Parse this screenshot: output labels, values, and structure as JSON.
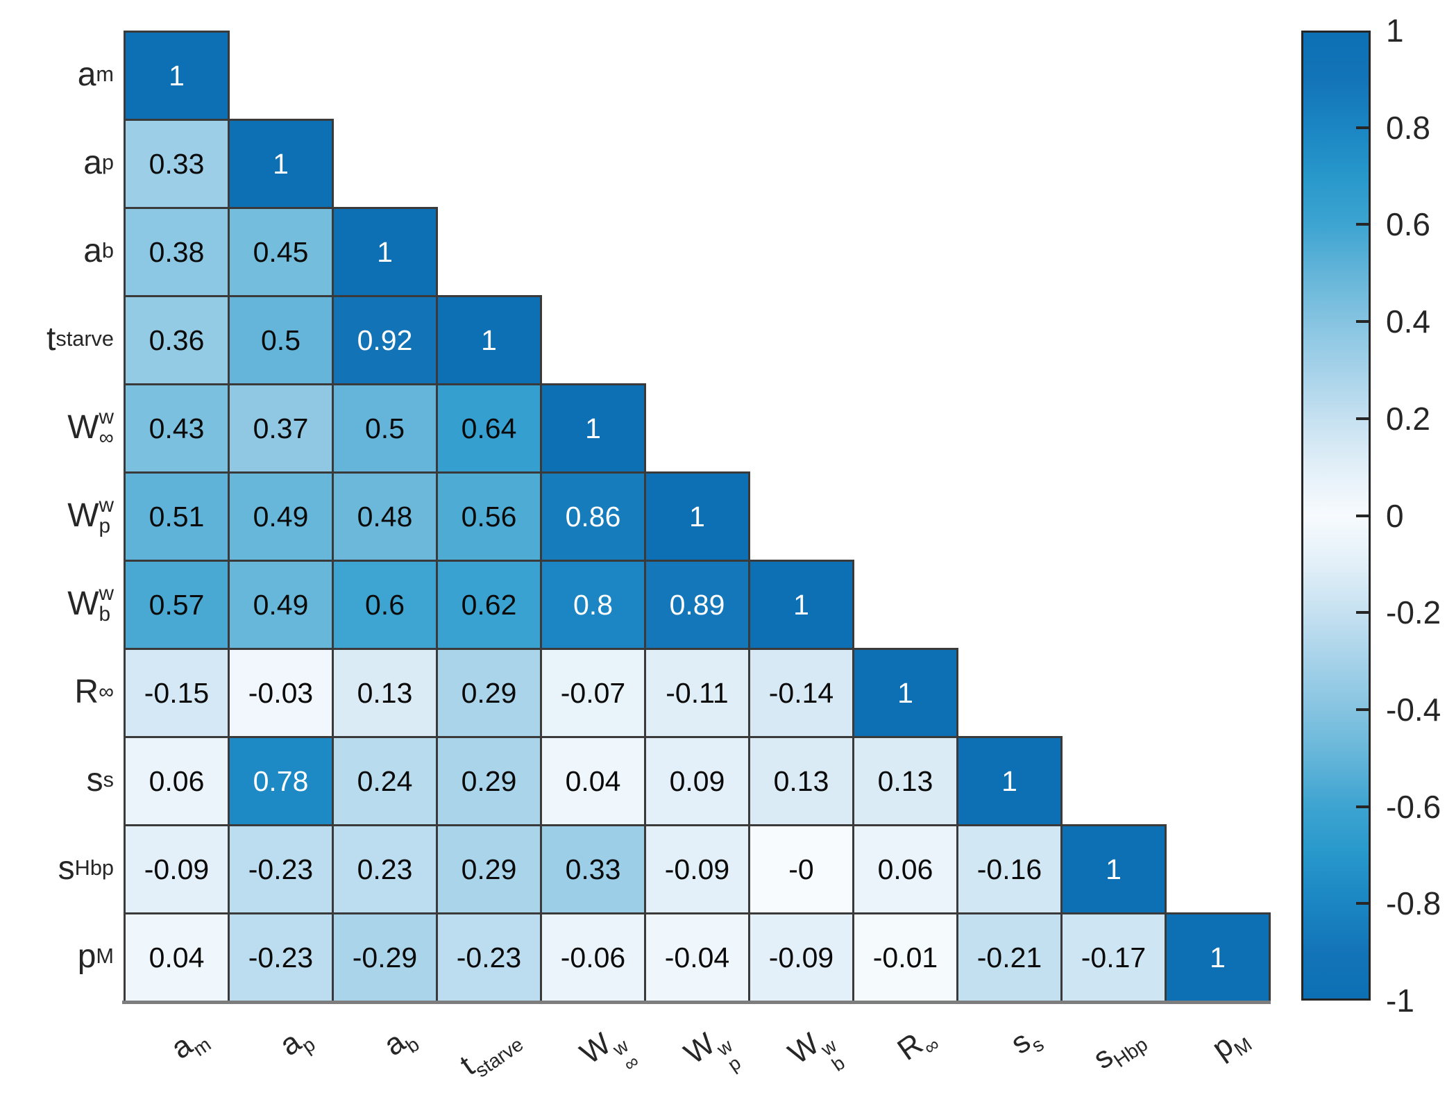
{
  "chart_data": {
    "type": "heatmap",
    "subtype": "lower-triangular-correlation-matrix",
    "title": "",
    "xlabel": "",
    "ylabel": "",
    "grid": "on",
    "value_range": [
      -1,
      1
    ],
    "colorbar_position": "right",
    "variables": [
      {
        "name": "a_m",
        "base": "a",
        "sub": "m"
      },
      {
        "name": "a_p",
        "base": "a",
        "sub": "p"
      },
      {
        "name": "a_b",
        "base": "a",
        "sub": "b"
      },
      {
        "name": "t_starve",
        "base": "t",
        "sub": "starve"
      },
      {
        "name": "W_inf_w",
        "base": "W",
        "sup": "w",
        "sub": "∞"
      },
      {
        "name": "W_p_w",
        "base": "W",
        "sup": "w",
        "sub": "p"
      },
      {
        "name": "W_b_w",
        "base": "W",
        "sup": "w",
        "sub": "b"
      },
      {
        "name": "R_inf",
        "base": "R",
        "sub": "∞"
      },
      {
        "name": "s_s",
        "base": "s",
        "sub": "s"
      },
      {
        "name": "s_Hbp",
        "base": "s",
        "sub": "Hbp"
      },
      {
        "name": "p_M",
        "base": "p",
        "sub": "M"
      }
    ],
    "rows": [
      [
        "1"
      ],
      [
        "0.33",
        "1"
      ],
      [
        "0.38",
        "0.45",
        "1"
      ],
      [
        "0.36",
        "0.5",
        "0.92",
        "1"
      ],
      [
        "0.43",
        "0.37",
        "0.5",
        "0.64",
        "1"
      ],
      [
        "0.51",
        "0.49",
        "0.48",
        "0.56",
        "0.86",
        "1"
      ],
      [
        "0.57",
        "0.49",
        "0.6",
        "0.62",
        "0.8",
        "0.89",
        "1"
      ],
      [
        "-0.15",
        "-0.03",
        "0.13",
        "0.29",
        "-0.07",
        "-0.11",
        "-0.14",
        "1"
      ],
      [
        "0.06",
        "0.78",
        "0.24",
        "0.29",
        "0.04",
        "0.09",
        "0.13",
        "0.13",
        "1"
      ],
      [
        "-0.09",
        "-0.23",
        "0.23",
        "0.29",
        "0.33",
        "-0.09",
        "-0",
        "0.06",
        "-0.16",
        "1"
      ],
      [
        "0.04",
        "-0.23",
        "-0.29",
        "-0.23",
        "-0.06",
        "-0.04",
        "-0.09",
        "-0.01",
        "-0.21",
        "-0.17",
        "1"
      ]
    ],
    "colorbar_ticks": [
      "1",
      "0.8",
      "0.6",
      "0.4",
      "0.2",
      "0",
      "-0.2",
      "-0.4",
      "-0.6",
      "-0.8",
      "-1"
    ],
    "colorscale_stops": [
      {
        "t": 0.0,
        "color": "#f7fbfe"
      },
      {
        "t": 0.1,
        "color": "#e2eff8"
      },
      {
        "t": 0.2,
        "color": "#c6e1f1"
      },
      {
        "t": 0.3,
        "color": "#a6d2e9"
      },
      {
        "t": 0.4,
        "color": "#86c4e1"
      },
      {
        "t": 0.5,
        "color": "#64b5d9"
      },
      {
        "t": 0.6,
        "color": "#3ea4d1"
      },
      {
        "t": 0.7,
        "color": "#2898cb"
      },
      {
        "t": 0.8,
        "color": "#1b86c3"
      },
      {
        "t": 0.9,
        "color": "#1375b8"
      },
      {
        "t": 1.0,
        "color": "#0d70b4"
      }
    ],
    "white_text_threshold": 0.7,
    "colors": {
      "grid_line": "#3a3a3a",
      "axis_text": "#262626",
      "cell_text": "#0a0a0a",
      "cell_text_light": "#ffffff",
      "axis_line": "#7d7d7d",
      "colorbar_border": "#262626",
      "background": "#ffffff"
    }
  }
}
